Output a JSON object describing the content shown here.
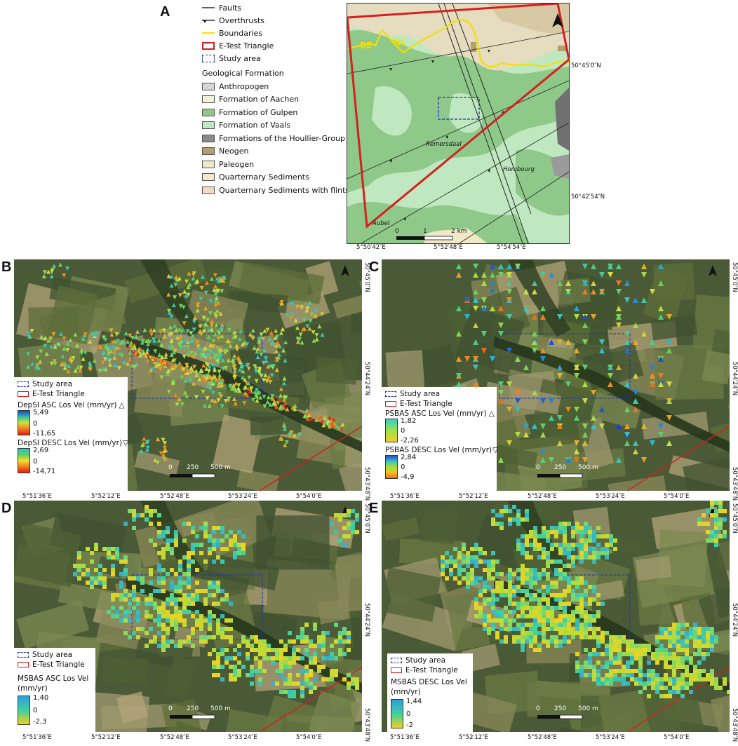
{
  "panels": {
    "a": {
      "label": "A"
    },
    "b": {
      "label": "B"
    },
    "c": {
      "label": "C"
    },
    "d": {
      "label": "D"
    },
    "e": {
      "label": "E"
    }
  },
  "legendA": {
    "faults": "Faults",
    "overthrusts": "Overthrusts",
    "boundaries": "Boundaries",
    "etest": "E-Test Triangle",
    "study": "Study area",
    "geo_title": "Geological Formation",
    "formations": [
      {
        "name": "Anthropogen",
        "color": "#e8e8e8",
        "hatch": true
      },
      {
        "name": "Formation of Aachen",
        "color": "#f2f2d4"
      },
      {
        "name": "Formation of Gulpen",
        "color": "#8fc98a"
      },
      {
        "name": "Formation of Vaals",
        "color": "#bfe8c0"
      },
      {
        "name": "Formations of the Houllier-Group",
        "color": "#8a8a8a"
      },
      {
        "name": "Neogen",
        "color": "#b59d6e"
      },
      {
        "name": "Paleogen",
        "color": "#f1e8c6"
      },
      {
        "name": "Quarternary Sediments",
        "color": "#f4e7cc"
      },
      {
        "name": "Quarternary Sediments with flints",
        "color": "#f3dcc1"
      }
    ]
  },
  "mapA": {
    "places": {
      "nl": "NL",
      "be": "BE",
      "remersdaal": "Remersdaal",
      "hombourg": "Hombourg",
      "aubel": "Aubel"
    },
    "scale": {
      "zero": "0",
      "one": "1",
      "two": "2 km"
    },
    "coords_x": [
      "5°50′42″E",
      "5°52′48″E",
      "5°54′54″E"
    ],
    "coords_y": [
      "50°45′0″N",
      "50°42′54″N"
    ]
  },
  "common": {
    "study": "Study area",
    "etest": "E-Test Triangle",
    "coords_x": [
      "5°51′36″E",
      "5°52′12″E",
      "5°52′48″E",
      "5°53′24″E",
      "5°54′0″E"
    ],
    "coords_y": [
      "50°45′0″N",
      "50°44′24″N",
      "50°43′48″N"
    ],
    "scale": {
      "zero": "0",
      "mid": "250",
      "end": "500 m"
    }
  },
  "legendB": {
    "asc_title": "DepSI ASC Los Vel (mm/yr)",
    "asc_max": "5,49",
    "asc_mid": "0",
    "asc_min": "-11,65",
    "desc_title": "DepSI DESC Los Vel (mm/yr)",
    "desc_max": "2,69",
    "desc_mid": "0",
    "desc_min": "-14,71"
  },
  "legendC": {
    "asc_title": "PSBAS ASC Los Vel (mm/yr)",
    "asc_max": "1,82",
    "asc_mid": "0",
    "asc_min": "-2,26",
    "desc_title": "PSBAS DESC Los Vel (mm/yr)",
    "desc_max": "2,84",
    "desc_mid": "0",
    "desc_min": "-4,9"
  },
  "legendD": {
    "title1": "MSBAS ASC Los Vel",
    "title2": "(mm/yr)",
    "max": "1,40",
    "mid": "0",
    "min": "-2,3"
  },
  "legendE": {
    "title1": "MSBAS DESC Los Vel",
    "title2": "(mm/yr)",
    "max": "1,44",
    "mid": "0",
    "min": "-2"
  },
  "colors": {
    "etest": "#d42020",
    "study": "#2233aa",
    "boundary": "#f2e000",
    "imagery": "#4a5a36"
  }
}
